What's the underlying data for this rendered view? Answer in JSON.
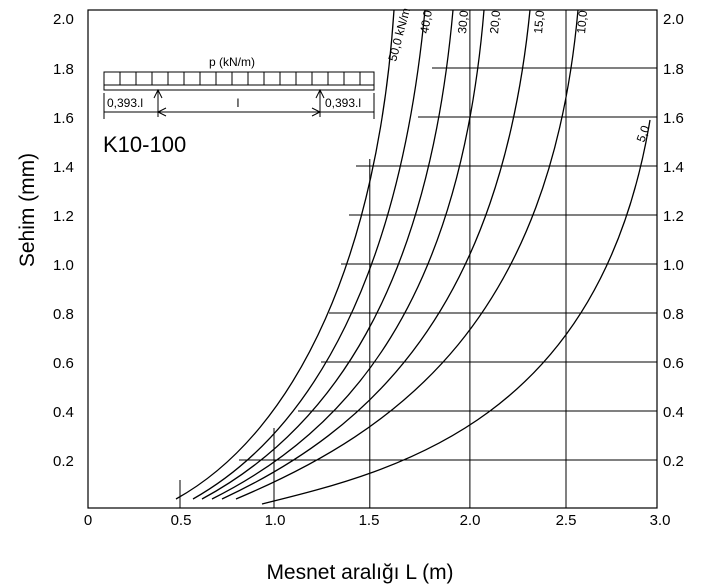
{
  "chart_data": {
    "type": "line",
    "xlabel": "Mesnet aralığı L (m)",
    "ylabel": "Sehim (mm)",
    "xlim": [
      0,
      3.0
    ],
    "ylim": [
      0,
      2.0
    ],
    "x_ticks": [
      "0",
      "0.5",
      "1.0",
      "1.5",
      "2.0",
      "2.5",
      "3.0"
    ],
    "y_ticks": [
      "0.2",
      "0.4",
      "0.6",
      "0.8",
      "1.0",
      "1.2",
      "1.4",
      "1.6",
      "1.8",
      "2.0"
    ],
    "right_y_ticks": [
      "0.2",
      "0.4",
      "0.6",
      "0.8",
      "1.0",
      "1.2",
      "1.4",
      "1.6",
      "1.8",
      "2.0"
    ],
    "series": [
      {
        "name": "50,0 kN/m",
        "x": [
          0.47,
          0.9,
          1.2,
          1.5,
          1.6
        ],
        "y": [
          0.05,
          0.4,
          0.9,
          1.78,
          2.0
        ]
      },
      {
        "name": "40,0",
        "x": [
          0.56,
          1.0,
          1.3,
          1.6,
          1.74
        ],
        "y": [
          0.05,
          0.4,
          0.9,
          1.65,
          2.0
        ]
      },
      {
        "name": "30,0",
        "x": [
          0.59,
          1.05,
          1.4,
          1.75,
          1.9
        ],
        "y": [
          0.05,
          0.4,
          0.9,
          1.75,
          2.0
        ]
      },
      {
        "name": "20,0",
        "x": [
          0.65,
          1.1,
          1.5,
          1.87,
          2.06
        ],
        "y": [
          0.05,
          0.35,
          0.82,
          1.58,
          2.0
        ]
      },
      {
        "name": "15,0",
        "x": [
          0.69,
          1.2,
          1.6,
          2.0,
          2.25
        ],
        "y": [
          0.05,
          0.35,
          0.75,
          1.43,
          2.0
        ]
      },
      {
        "name": "10,0",
        "x": [
          0.74,
          1.3,
          1.8,
          2.2,
          2.53
        ],
        "y": [
          0.05,
          0.35,
          0.83,
          1.41,
          2.0
        ]
      },
      {
        "name": "5,0",
        "x": [
          0.87,
          1.5,
          2.0,
          2.5,
          2.93
        ],
        "y": [
          0.02,
          0.19,
          0.4,
          0.8,
          1.55
        ]
      }
    ],
    "grid": "partial",
    "annotations": {
      "load": "p (kN/m)",
      "span": "l",
      "overhang_left": "0,393.l",
      "overhang_right": "0,393.l",
      "panel": "K10-100"
    },
    "curve_labels": [
      "50,0 kN/m",
      "40,0",
      "30,0",
      "20,0",
      "15,0",
      "10,0",
      "5,0"
    ]
  }
}
